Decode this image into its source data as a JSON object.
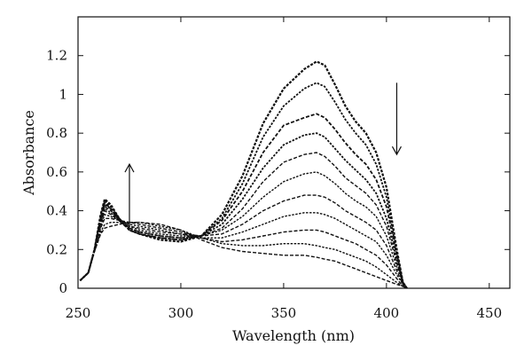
{
  "chart_data": {
    "type": "line",
    "xlabel": "Wavelength (nm)",
    "ylabel": "Absorbance",
    "xlim": [
      250,
      460
    ],
    "ylim": [
      0,
      1.4
    ],
    "xticks": [
      250,
      300,
      350,
      400,
      450
    ],
    "yticks": [
      0,
      0.2,
      0.4,
      0.6,
      0.8,
      1,
      1.2
    ],
    "grid": false,
    "legend": "none",
    "series_color": "#111111",
    "arrows": [
      {
        "x": 275,
        "y_from": 0.32,
        "y_to": 0.64,
        "direction": "up"
      },
      {
        "x": 405,
        "y_from": 1.06,
        "y_to": 0.69,
        "direction": "down"
      }
    ],
    "series": [
      {
        "values": [
          [
            251,
            0.04
          ],
          [
            255,
            0.08
          ],
          [
            258,
            0.2
          ],
          [
            261,
            0.38
          ],
          [
            263,
            0.46
          ],
          [
            266,
            0.43
          ],
          [
            270,
            0.36
          ],
          [
            275,
            0.3
          ],
          [
            280,
            0.28
          ],
          [
            290,
            0.25
          ],
          [
            300,
            0.24
          ],
          [
            310,
            0.27
          ],
          [
            320,
            0.38
          ],
          [
            330,
            0.58
          ],
          [
            340,
            0.85
          ],
          [
            350,
            1.03
          ],
          [
            360,
            1.13
          ],
          [
            366,
            1.17
          ],
          [
            370,
            1.15
          ],
          [
            375,
            1.05
          ],
          [
            380,
            0.94
          ],
          [
            385,
            0.86
          ],
          [
            390,
            0.8
          ],
          [
            395,
            0.7
          ],
          [
            400,
            0.52
          ],
          [
            405,
            0.2
          ],
          [
            408,
            0.03
          ],
          [
            410,
            0.0
          ]
        ]
      },
      {
        "values": [
          [
            251,
            0.04
          ],
          [
            255,
            0.08
          ],
          [
            258,
            0.2
          ],
          [
            261,
            0.37
          ],
          [
            263,
            0.45
          ],
          [
            266,
            0.42
          ],
          [
            270,
            0.36
          ],
          [
            275,
            0.3
          ],
          [
            280,
            0.28
          ],
          [
            290,
            0.26
          ],
          [
            300,
            0.25
          ],
          [
            310,
            0.27
          ],
          [
            320,
            0.36
          ],
          [
            330,
            0.54
          ],
          [
            340,
            0.78
          ],
          [
            350,
            0.94
          ],
          [
            360,
            1.03
          ],
          [
            366,
            1.06
          ],
          [
            370,
            1.04
          ],
          [
            375,
            0.96
          ],
          [
            380,
            0.87
          ],
          [
            385,
            0.8
          ],
          [
            390,
            0.74
          ],
          [
            395,
            0.64
          ],
          [
            400,
            0.47
          ],
          [
            405,
            0.18
          ],
          [
            408,
            0.03
          ],
          [
            410,
            0.0
          ]
        ]
      },
      {
        "values": [
          [
            251,
            0.04
          ],
          [
            255,
            0.08
          ],
          [
            258,
            0.2
          ],
          [
            261,
            0.36
          ],
          [
            263,
            0.44
          ],
          [
            266,
            0.41
          ],
          [
            270,
            0.35
          ],
          [
            275,
            0.3
          ],
          [
            280,
            0.28
          ],
          [
            290,
            0.26
          ],
          [
            300,
            0.25
          ],
          [
            310,
            0.27
          ],
          [
            320,
            0.35
          ],
          [
            330,
            0.5
          ],
          [
            340,
            0.7
          ],
          [
            350,
            0.84
          ],
          [
            360,
            0.88
          ],
          [
            366,
            0.9
          ],
          [
            370,
            0.88
          ],
          [
            375,
            0.82
          ],
          [
            380,
            0.75
          ],
          [
            385,
            0.69
          ],
          [
            390,
            0.64
          ],
          [
            395,
            0.56
          ],
          [
            400,
            0.42
          ],
          [
            405,
            0.17
          ],
          [
            408,
            0.03
          ],
          [
            410,
            0.0
          ]
        ]
      },
      {
        "values": [
          [
            251,
            0.04
          ],
          [
            255,
            0.08
          ],
          [
            258,
            0.2
          ],
          [
            261,
            0.36
          ],
          [
            263,
            0.43
          ],
          [
            266,
            0.41
          ],
          [
            270,
            0.35
          ],
          [
            275,
            0.31
          ],
          [
            280,
            0.29
          ],
          [
            290,
            0.27
          ],
          [
            300,
            0.26
          ],
          [
            310,
            0.27
          ],
          [
            320,
            0.33
          ],
          [
            330,
            0.46
          ],
          [
            340,
            0.62
          ],
          [
            350,
            0.74
          ],
          [
            360,
            0.79
          ],
          [
            366,
            0.8
          ],
          [
            370,
            0.78
          ],
          [
            375,
            0.72
          ],
          [
            380,
            0.66
          ],
          [
            385,
            0.61
          ],
          [
            390,
            0.56
          ],
          [
            395,
            0.49
          ],
          [
            400,
            0.36
          ],
          [
            405,
            0.15
          ],
          [
            408,
            0.03
          ],
          [
            410,
            0.0
          ]
        ]
      },
      {
        "values": [
          [
            251,
            0.04
          ],
          [
            255,
            0.08
          ],
          [
            258,
            0.2
          ],
          [
            261,
            0.35
          ],
          [
            263,
            0.42
          ],
          [
            266,
            0.4
          ],
          [
            270,
            0.35
          ],
          [
            275,
            0.31
          ],
          [
            280,
            0.29
          ],
          [
            290,
            0.27
          ],
          [
            300,
            0.26
          ],
          [
            310,
            0.27
          ],
          [
            320,
            0.31
          ],
          [
            330,
            0.41
          ],
          [
            340,
            0.55
          ],
          [
            350,
            0.65
          ],
          [
            360,
            0.69
          ],
          [
            366,
            0.7
          ],
          [
            370,
            0.68
          ],
          [
            375,
            0.63
          ],
          [
            380,
            0.57
          ],
          [
            385,
            0.53
          ],
          [
            390,
            0.49
          ],
          [
            395,
            0.43
          ],
          [
            400,
            0.32
          ],
          [
            405,
            0.13
          ],
          [
            408,
            0.03
          ],
          [
            410,
            0.0
          ]
        ]
      },
      {
        "values": [
          [
            251,
            0.04
          ],
          [
            255,
            0.08
          ],
          [
            258,
            0.2
          ],
          [
            261,
            0.34
          ],
          [
            263,
            0.41
          ],
          [
            266,
            0.39
          ],
          [
            270,
            0.35
          ],
          [
            275,
            0.32
          ],
          [
            280,
            0.3
          ],
          [
            290,
            0.28
          ],
          [
            300,
            0.27
          ],
          [
            310,
            0.27
          ],
          [
            320,
            0.3
          ],
          [
            330,
            0.37
          ],
          [
            340,
            0.47
          ],
          [
            350,
            0.55
          ],
          [
            360,
            0.59
          ],
          [
            366,
            0.6
          ],
          [
            370,
            0.58
          ],
          [
            375,
            0.54
          ],
          [
            380,
            0.49
          ],
          [
            385,
            0.45
          ],
          [
            390,
            0.42
          ],
          [
            395,
            0.37
          ],
          [
            400,
            0.27
          ],
          [
            405,
            0.11
          ],
          [
            408,
            0.03
          ],
          [
            410,
            0.0
          ]
        ]
      },
      {
        "values": [
          [
            251,
            0.04
          ],
          [
            255,
            0.08
          ],
          [
            258,
            0.2
          ],
          [
            261,
            0.33
          ],
          [
            263,
            0.4
          ],
          [
            266,
            0.38
          ],
          [
            270,
            0.35
          ],
          [
            275,
            0.32
          ],
          [
            280,
            0.31
          ],
          [
            290,
            0.29
          ],
          [
            300,
            0.28
          ],
          [
            310,
            0.27
          ],
          [
            320,
            0.28
          ],
          [
            330,
            0.33
          ],
          [
            340,
            0.4
          ],
          [
            350,
            0.45
          ],
          [
            360,
            0.48
          ],
          [
            366,
            0.48
          ],
          [
            370,
            0.47
          ],
          [
            375,
            0.44
          ],
          [
            380,
            0.4
          ],
          [
            385,
            0.37
          ],
          [
            390,
            0.34
          ],
          [
            395,
            0.3
          ],
          [
            400,
            0.22
          ],
          [
            405,
            0.09
          ],
          [
            408,
            0.02
          ],
          [
            410,
            0.0
          ]
        ]
      },
      {
        "values": [
          [
            251,
            0.04
          ],
          [
            255,
            0.08
          ],
          [
            258,
            0.2
          ],
          [
            261,
            0.32
          ],
          [
            263,
            0.38
          ],
          [
            266,
            0.37
          ],
          [
            270,
            0.35
          ],
          [
            275,
            0.33
          ],
          [
            280,
            0.32
          ],
          [
            290,
            0.3
          ],
          [
            300,
            0.28
          ],
          [
            310,
            0.26
          ],
          [
            320,
            0.26
          ],
          [
            330,
            0.29
          ],
          [
            340,
            0.33
          ],
          [
            350,
            0.37
          ],
          [
            360,
            0.39
          ],
          [
            366,
            0.39
          ],
          [
            370,
            0.38
          ],
          [
            375,
            0.36
          ],
          [
            380,
            0.33
          ],
          [
            385,
            0.3
          ],
          [
            390,
            0.27
          ],
          [
            395,
            0.24
          ],
          [
            400,
            0.17
          ],
          [
            405,
            0.07
          ],
          [
            408,
            0.02
          ],
          [
            410,
            0.0
          ]
        ]
      },
      {
        "values": [
          [
            251,
            0.04
          ],
          [
            255,
            0.08
          ],
          [
            258,
            0.2
          ],
          [
            261,
            0.31
          ],
          [
            263,
            0.36
          ],
          [
            266,
            0.36
          ],
          [
            270,
            0.35
          ],
          [
            275,
            0.34
          ],
          [
            280,
            0.33
          ],
          [
            290,
            0.31
          ],
          [
            300,
            0.29
          ],
          [
            310,
            0.26
          ],
          [
            320,
            0.24
          ],
          [
            330,
            0.25
          ],
          [
            340,
            0.27
          ],
          [
            350,
            0.29
          ],
          [
            360,
            0.3
          ],
          [
            366,
            0.3
          ],
          [
            370,
            0.29
          ],
          [
            375,
            0.27
          ],
          [
            380,
            0.25
          ],
          [
            385,
            0.23
          ],
          [
            390,
            0.2
          ],
          [
            395,
            0.17
          ],
          [
            400,
            0.12
          ],
          [
            405,
            0.05
          ],
          [
            408,
            0.01
          ],
          [
            410,
            0.0
          ]
        ]
      },
      {
        "values": [
          [
            251,
            0.04
          ],
          [
            255,
            0.08
          ],
          [
            258,
            0.19
          ],
          [
            261,
            0.29
          ],
          [
            263,
            0.33
          ],
          [
            266,
            0.34
          ],
          [
            270,
            0.34
          ],
          [
            275,
            0.34
          ],
          [
            280,
            0.34
          ],
          [
            290,
            0.32
          ],
          [
            300,
            0.3
          ],
          [
            310,
            0.26
          ],
          [
            320,
            0.23
          ],
          [
            330,
            0.22
          ],
          [
            340,
            0.22
          ],
          [
            350,
            0.23
          ],
          [
            360,
            0.23
          ],
          [
            366,
            0.22
          ],
          [
            370,
            0.21
          ],
          [
            375,
            0.2
          ],
          [
            380,
            0.18
          ],
          [
            385,
            0.16
          ],
          [
            390,
            0.14
          ],
          [
            395,
            0.11
          ],
          [
            400,
            0.07
          ],
          [
            405,
            0.03
          ],
          [
            408,
            0.01
          ],
          [
            410,
            0.0
          ]
        ]
      },
      {
        "values": [
          [
            251,
            0.04
          ],
          [
            255,
            0.08
          ],
          [
            258,
            0.19
          ],
          [
            261,
            0.28
          ],
          [
            263,
            0.31
          ],
          [
            266,
            0.32
          ],
          [
            270,
            0.33
          ],
          [
            275,
            0.34
          ],
          [
            280,
            0.34
          ],
          [
            290,
            0.33
          ],
          [
            300,
            0.3
          ],
          [
            310,
            0.25
          ],
          [
            320,
            0.21
          ],
          [
            330,
            0.19
          ],
          [
            340,
            0.18
          ],
          [
            350,
            0.17
          ],
          [
            360,
            0.17
          ],
          [
            366,
            0.16
          ],
          [
            370,
            0.15
          ],
          [
            375,
            0.14
          ],
          [
            380,
            0.12
          ],
          [
            385,
            0.1
          ],
          [
            390,
            0.08
          ],
          [
            395,
            0.06
          ],
          [
            400,
            0.04
          ],
          [
            405,
            0.02
          ],
          [
            408,
            0.01
          ],
          [
            410,
            0.0
          ]
        ]
      }
    ]
  }
}
